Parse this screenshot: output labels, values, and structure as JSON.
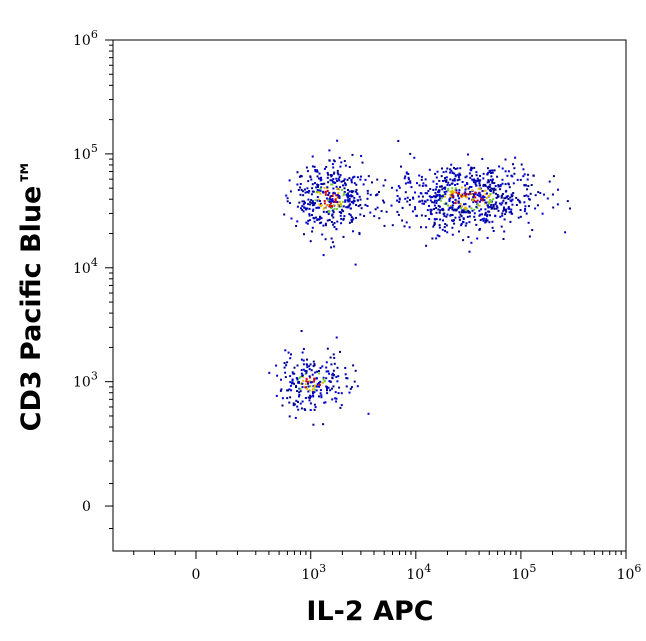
{
  "chart_data": {
    "type": "scatter",
    "xlabel": "IL-2 APC",
    "ylabel": "CD3 Pacific Blue™",
    "x_scale": "biexponential",
    "y_scale": "biexponential",
    "xlim": [
      -400,
      1000000
    ],
    "ylim": [
      -200,
      1000000
    ],
    "x_ticks": [
      {
        "value": 0,
        "base": "0",
        "exp": ""
      },
      {
        "value": 1000,
        "base": "10",
        "exp": "3"
      },
      {
        "value": 10000,
        "base": "10",
        "exp": "4"
      },
      {
        "value": 100000,
        "base": "10",
        "exp": "5"
      },
      {
        "value": 1000000,
        "base": "10",
        "exp": "6"
      }
    ],
    "y_ticks": [
      {
        "value": 0,
        "base": "0",
        "exp": ""
      },
      {
        "value": 1000,
        "base": "10",
        "exp": "3"
      },
      {
        "value": 10000,
        "base": "10",
        "exp": "4"
      },
      {
        "value": 100000,
        "base": "10",
        "exp": "5"
      },
      {
        "value": 1000000,
        "base": "10",
        "exp": "6"
      }
    ],
    "grid": false,
    "legend": "none",
    "density_colors": [
      "#0000cc",
      "#00008b",
      "#cc0000",
      "#e6b800",
      "#66cc33"
    ],
    "populations": [
      {
        "x_center": 1500,
        "y_center": 42000,
        "x_spread_decades": 0.18,
        "y_spread_decades": 0.16,
        "count": 420
      },
      {
        "x_center": 30000,
        "y_center": 42000,
        "x_spread_decades": 0.33,
        "y_spread_decades": 0.14,
        "count": 720
      },
      {
        "x_center": 1000,
        "y_center": 1000,
        "x_spread_decades": 0.17,
        "y_spread_decades": 0.12,
        "count": 240
      }
    ]
  }
}
